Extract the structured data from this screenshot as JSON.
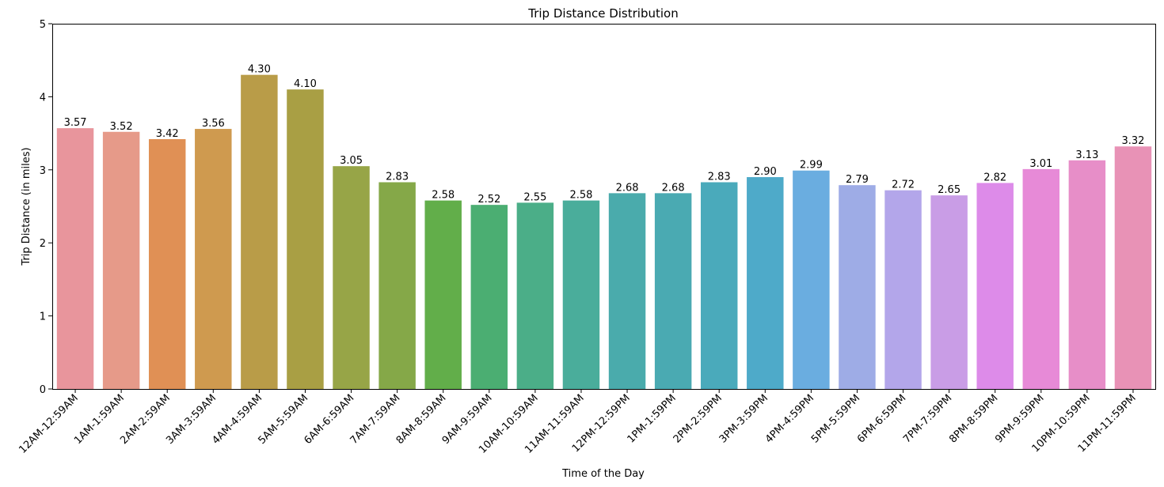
{
  "chart_data": {
    "type": "bar",
    "title": "Trip Distance Distribution",
    "xlabel": "Time of the Day",
    "ylabel": "Trip Distance (in miles)",
    "ylim": [
      0,
      5
    ],
    "yticks": [
      0,
      1,
      2,
      3,
      4,
      5
    ],
    "grid": false,
    "legend": "none",
    "categories": [
      "12AM-12:59AM",
      "1AM-1:59AM",
      "2AM-2:59AM",
      "3AM-3:59AM",
      "4AM-4:59AM",
      "5AM-5:59AM",
      "6AM-6:59AM",
      "7AM-7:59AM",
      "8AM-8:59AM",
      "9AM-9:59AM",
      "10AM-10:59AM",
      "11AM-11:59AM",
      "12PM-12:59PM",
      "1PM-1:59PM",
      "2PM-2:59PM",
      "3PM-3:59PM",
      "4PM-4:59PM",
      "5PM-5:59PM",
      "6PM-6:59PM",
      "7PM-7:59PM",
      "8PM-8:59PM",
      "9PM-9:59PM",
      "10PM-10:59PM",
      "11PM-11:59PM"
    ],
    "values": [
      3.57,
      3.52,
      3.42,
      3.56,
      4.3,
      4.1,
      3.05,
      2.83,
      2.58,
      2.52,
      2.55,
      2.58,
      2.68,
      2.68,
      2.83,
      2.9,
      2.99,
      2.79,
      2.72,
      2.65,
      2.82,
      3.01,
      3.13,
      3.32
    ],
    "value_labels": [
      "3.57",
      "3.52",
      "3.42",
      "3.56",
      "4.30",
      "4.10",
      "3.05",
      "2.83",
      "2.58",
      "2.52",
      "2.55",
      "2.58",
      "2.68",
      "2.68",
      "2.83",
      "2.90",
      "2.99",
      "2.79",
      "2.72",
      "2.65",
      "2.82",
      "3.01",
      "3.13",
      "3.32"
    ],
    "colors": [
      "#e8959c",
      "#e69a89",
      "#e09055",
      "#cf9a4f",
      "#b99c48",
      "#a99f44",
      "#97a547",
      "#85a848",
      "#62ae4a",
      "#4bae72",
      "#4bae88",
      "#4aad9b",
      "#4aabac",
      "#4aaab2",
      "#4aaabb",
      "#4eaac9",
      "#6aade0",
      "#9eace6",
      "#b3a6ea",
      "#c99de6",
      "#dd8be9",
      "#e78ad7",
      "#e78ec8",
      "#e892b6"
    ]
  }
}
